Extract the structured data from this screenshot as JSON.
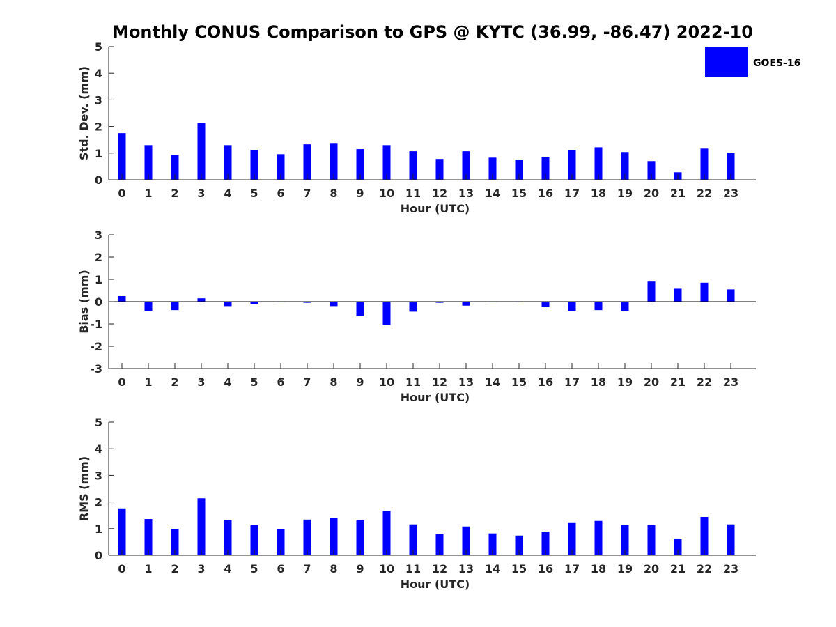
{
  "title": "Monthly CONUS Comparison to GPS @ KYTC (36.99, -86.47) 2022-10",
  "legend": {
    "label": "GOES-16",
    "color": "#0000ff"
  },
  "chart_data": [
    {
      "type": "bar",
      "series_name": "GOES-16",
      "categories": [
        "0",
        "1",
        "2",
        "3",
        "4",
        "5",
        "6",
        "7",
        "8",
        "9",
        "10",
        "11",
        "12",
        "13",
        "14",
        "15",
        "16",
        "17",
        "18",
        "19",
        "20",
        "21",
        "22",
        "23"
      ],
      "values": [
        1.75,
        1.3,
        0.93,
        2.14,
        1.3,
        1.12,
        0.96,
        1.33,
        1.38,
        1.15,
        1.3,
        1.07,
        0.78,
        1.07,
        0.83,
        0.76,
        0.86,
        1.12,
        1.22,
        1.04,
        0.7,
        0.28,
        1.17,
        1.02
      ],
      "xlabel": "Hour (UTC)",
      "ylabel": "Std. Dev. (mm)",
      "ylim": [
        0,
        5
      ],
      "yticks": [
        0,
        1,
        2,
        3,
        4,
        5
      ],
      "color": "#0000ff",
      "grid": false
    },
    {
      "type": "bar",
      "series_name": "GOES-16",
      "categories": [
        "0",
        "1",
        "2",
        "3",
        "4",
        "5",
        "6",
        "7",
        "8",
        "9",
        "10",
        "11",
        "12",
        "13",
        "14",
        "15",
        "16",
        "17",
        "18",
        "19",
        "20",
        "21",
        "22",
        "23"
      ],
      "values": [
        0.25,
        -0.42,
        -0.38,
        0.15,
        -0.2,
        -0.1,
        -0.02,
        -0.05,
        -0.2,
        -0.65,
        -1.05,
        -0.45,
        -0.05,
        -0.18,
        -0.02,
        -0.02,
        -0.25,
        -0.42,
        -0.38,
        -0.42,
        0.9,
        0.58,
        0.85,
        0.55
      ],
      "xlabel": "Hour (UTC)",
      "ylabel": "Bias (mm)",
      "ylim": [
        -3,
        3
      ],
      "yticks": [
        -3,
        -2,
        -1,
        0,
        1,
        2,
        3
      ],
      "color": "#0000ff",
      "grid": false,
      "zero_line": true
    },
    {
      "type": "bar",
      "series_name": "GOES-16",
      "categories": [
        "0",
        "1",
        "2",
        "3",
        "4",
        "5",
        "6",
        "7",
        "8",
        "9",
        "10",
        "11",
        "12",
        "13",
        "14",
        "15",
        "16",
        "17",
        "18",
        "19",
        "20",
        "21",
        "22",
        "23"
      ],
      "values": [
        1.76,
        1.36,
        0.99,
        2.14,
        1.31,
        1.13,
        0.97,
        1.34,
        1.39,
        1.31,
        1.67,
        1.16,
        0.79,
        1.08,
        0.82,
        0.74,
        0.89,
        1.21,
        1.29,
        1.14,
        1.13,
        0.63,
        1.44,
        1.16
      ],
      "xlabel": "Hour (UTC)",
      "ylabel": "RMS (mm)",
      "ylim": [
        0,
        5
      ],
      "yticks": [
        0,
        1,
        2,
        3,
        4,
        5
      ],
      "color": "#0000ff",
      "grid": false
    }
  ]
}
